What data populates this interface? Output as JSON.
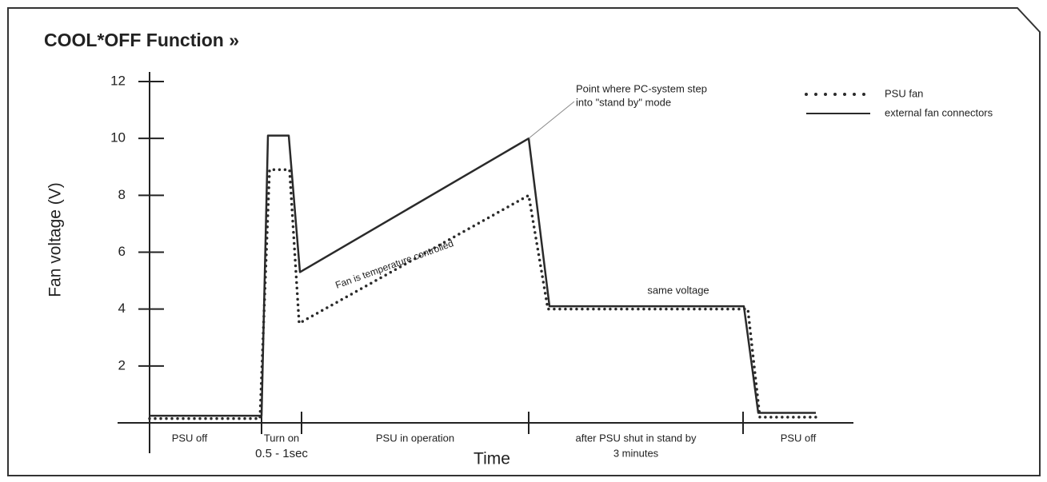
{
  "chart_data": {
    "type": "line",
    "title": "COOL*OFF Function »",
    "x_label": "Time",
    "y_label": "Fan voltage (V)",
    "xlim": [
      -4,
      88
    ],
    "ylim": [
      0,
      12
    ],
    "yticks": [
      2,
      4,
      6,
      8,
      10,
      12
    ],
    "phase_boundaries": [
      14,
      19,
      47.4,
      74.2
    ],
    "phases": [
      [
        "PSU off"
      ],
      [
        "Turn on",
        "0.5 - 1sec"
      ],
      [
        "PSU in operation"
      ],
      [
        "after PSU shut in stand by",
        "3 minutes"
      ],
      [
        "PSU off"
      ]
    ],
    "series": [
      {
        "name": "PSU fan",
        "color": "#2a2a2a",
        "style": "dotted",
        "x": [
          0,
          13.8,
          15,
          17.5,
          18.7,
          47.4,
          49.8,
          74.8,
          76.3,
          83.3
        ],
        "values": [
          0.15,
          0.15,
          8.9,
          8.9,
          3.5,
          8,
          4,
          4,
          0.2,
          0.2
        ]
      },
      {
        "name": "external fan connectors",
        "color": "#2a2a2a",
        "style": "solid",
        "x": [
          0,
          14,
          14.8,
          17.4,
          18.8,
          47.4,
          50,
          74.3,
          76.1,
          83.3
        ],
        "values": [
          0.25,
          0.25,
          10.1,
          10.1,
          5.3,
          10,
          4.1,
          4.1,
          0.35,
          0.35
        ]
      }
    ],
    "annotations": {
      "stand_by_point": [
        "Point where PC-system step",
        "into \"stand by\" mode"
      ],
      "temperature": "Fan is temperature controlled",
      "same_voltage": "same voltage"
    }
  }
}
